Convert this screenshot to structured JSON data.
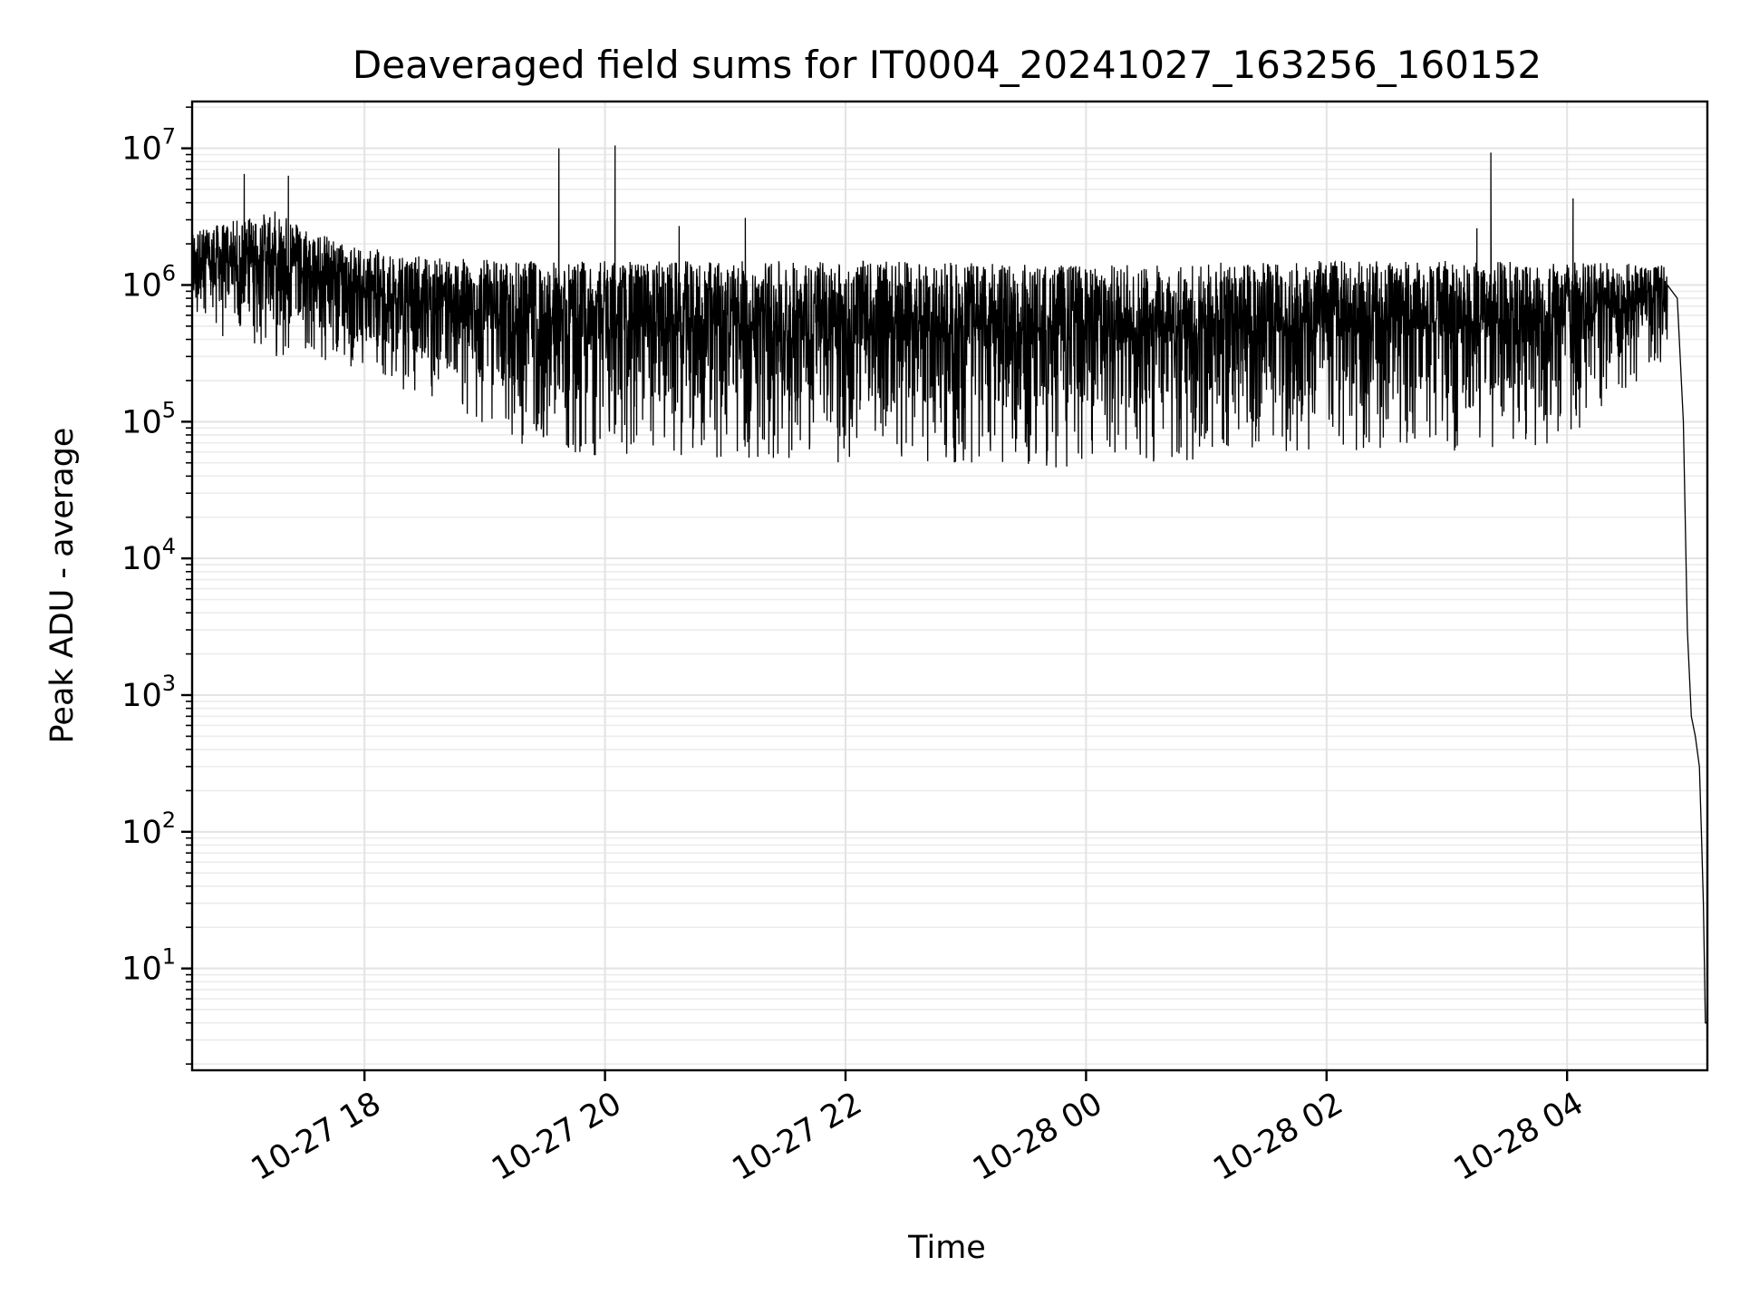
{
  "chart_data": {
    "type": "line",
    "title": "Deaveraged field sums for IT0004_20241027_163256_160152",
    "xlabel": "Time",
    "ylabel": "Peak ADU - average",
    "yscale": "log",
    "xlim": [
      "2024-10-27 16:34",
      "2024-10-28 05:10"
    ],
    "ylim": [
      1.8,
      22000000
    ],
    "grid": "major and minor",
    "x_ticks": [
      "10-27 18",
      "10-27 20",
      "10-27 22",
      "10-28 00",
      "10-28 02",
      "10-28 04"
    ],
    "y_ticks": [
      {
        "base": "10",
        "exp": "1"
      },
      {
        "base": "10",
        "exp": "2"
      },
      {
        "base": "10",
        "exp": "3"
      },
      {
        "base": "10",
        "exp": "4"
      },
      {
        "base": "10",
        "exp": "5"
      },
      {
        "base": "10",
        "exp": "6"
      },
      {
        "base": "10",
        "exp": "7"
      }
    ],
    "series": [
      {
        "color": "#000000",
        "band": {
          "x": [
            "2024-10-27 16:34",
            "2024-10-27 17:15",
            "2024-10-27 17:50",
            "2024-10-27 18:30",
            "2024-10-27 19:15",
            "2024-10-27 20:00",
            "2024-10-27 22:00",
            "2024-10-28 00:00",
            "2024-10-28 02:00",
            "2024-10-28 03:00",
            "2024-10-28 04:00",
            "2024-10-28 04:50"
          ],
          "upper": [
            2500000,
            3500000,
            2000000,
            1600000,
            1500000,
            1500000,
            1500000,
            1400000,
            1500000,
            1500000,
            1500000,
            1400000
          ],
          "lower": [
            500000,
            300000,
            250000,
            150000,
            70000,
            55000,
            50000,
            45000,
            60000,
            60000,
            70000,
            300000
          ]
        },
        "spikes": [
          {
            "x": "2024-10-27 17:00",
            "y": 6500000
          },
          {
            "x": "2024-10-27 17:22",
            "y": 6300000
          },
          {
            "x": "2024-10-27 19:37",
            "y": 10000000
          },
          {
            "x": "2024-10-27 20:05",
            "y": 10500000
          },
          {
            "x": "2024-10-27 20:37",
            "y": 2700000
          },
          {
            "x": "2024-10-27 21:10",
            "y": 3100000
          },
          {
            "x": "2024-10-28 03:22",
            "y": 9300000
          },
          {
            "x": "2024-10-28 03:15",
            "y": 2600000
          },
          {
            "x": "2024-10-28 04:03",
            "y": 4300000
          }
        ],
        "tail": {
          "x": [
            "2024-10-28 04:50",
            "2024-10-28 04:55",
            "2024-10-28 04:58",
            "2024-10-28 05:00",
            "2024-10-28 05:02",
            "2024-10-28 05:04",
            "2024-10-28 05:06",
            "2024-10-28 05:07",
            "2024-10-28 05:08",
            "2024-10-28 05:09",
            "2024-10-28 05:10"
          ],
          "y": [
            1000000,
            800000,
            100000,
            3000,
            700,
            500,
            300,
            100,
            30,
            4,
            4
          ]
        }
      }
    ]
  }
}
